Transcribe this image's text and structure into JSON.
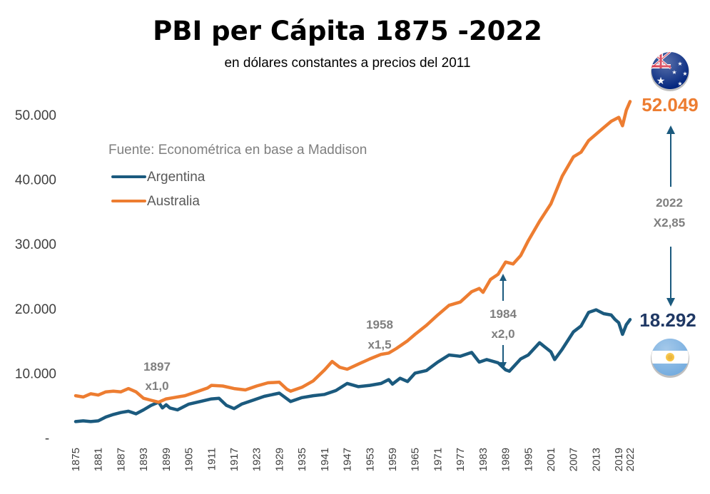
{
  "chart_data": {
    "type": "line",
    "title": "PBI per Cápita 1875 -2022",
    "subtitle": "en dólares constantes a precios del 2011",
    "source": "Fuente: Econométrica en base a Maddison",
    "xlim": [
      1875,
      2022
    ],
    "ylim": [
      0,
      55000
    ],
    "y_ticks": [
      0,
      10000,
      20000,
      30000,
      40000,
      50000
    ],
    "y_tick_labels": [
      "-",
      "10.000",
      "20.000",
      "30.000",
      "40.000",
      "50.000"
    ],
    "x_ticks": [
      1875,
      1881,
      1887,
      1893,
      1899,
      1905,
      1911,
      1917,
      1923,
      1929,
      1935,
      1941,
      1947,
      1953,
      1959,
      1965,
      1971,
      1977,
      1983,
      1989,
      1995,
      2001,
      2007,
      2013,
      2019,
      2022
    ],
    "legend_position": "top-left",
    "series": [
      {
        "name": "Argentina",
        "color": "#1B5A7E",
        "points": [
          [
            1875,
            2500
          ],
          [
            1877,
            2600
          ],
          [
            1879,
            2500
          ],
          [
            1881,
            2600
          ],
          [
            1883,
            3200
          ],
          [
            1885,
            3600
          ],
          [
            1887,
            3900
          ],
          [
            1889,
            4100
          ],
          [
            1891,
            3700
          ],
          [
            1893,
            4300
          ],
          [
            1895,
            5000
          ],
          [
            1897,
            5500
          ],
          [
            1898,
            4600
          ],
          [
            1899,
            5100
          ],
          [
            1900,
            4600
          ],
          [
            1902,
            4300
          ],
          [
            1905,
            5200
          ],
          [
            1908,
            5600
          ],
          [
            1911,
            6000
          ],
          [
            1913,
            6100
          ],
          [
            1915,
            5000
          ],
          [
            1917,
            4500
          ],
          [
            1919,
            5200
          ],
          [
            1922,
            5800
          ],
          [
            1925,
            6400
          ],
          [
            1929,
            6900
          ],
          [
            1932,
            5600
          ],
          [
            1935,
            6200
          ],
          [
            1938,
            6500
          ],
          [
            1941,
            6700
          ],
          [
            1944,
            7300
          ],
          [
            1947,
            8400
          ],
          [
            1950,
            7900
          ],
          [
            1953,
            8100
          ],
          [
            1956,
            8400
          ],
          [
            1958,
            9000
          ],
          [
            1959,
            8300
          ],
          [
            1961,
            9200
          ],
          [
            1963,
            8700
          ],
          [
            1965,
            10000
          ],
          [
            1968,
            10400
          ],
          [
            1971,
            11700
          ],
          [
            1974,
            12800
          ],
          [
            1977,
            12600
          ],
          [
            1980,
            13200
          ],
          [
            1982,
            11700
          ],
          [
            1984,
            12100
          ],
          [
            1987,
            11600
          ],
          [
            1989,
            10500
          ],
          [
            1990,
            10300
          ],
          [
            1993,
            12200
          ],
          [
            1995,
            12800
          ],
          [
            1998,
            14700
          ],
          [
            2001,
            13300
          ],
          [
            2002,
            12100
          ],
          [
            2004,
            13700
          ],
          [
            2007,
            16400
          ],
          [
            2009,
            17300
          ],
          [
            2011,
            19400
          ],
          [
            2013,
            19800
          ],
          [
            2015,
            19200
          ],
          [
            2017,
            19000
          ],
          [
            2018,
            18300
          ],
          [
            2019,
            17800
          ],
          [
            2020,
            16000
          ],
          [
            2021,
            17500
          ],
          [
            2022,
            18292
          ]
        ]
      },
      {
        "name": "Australia",
        "color": "#ED7D31",
        "points": [
          [
            1875,
            6500
          ],
          [
            1877,
            6300
          ],
          [
            1879,
            6800
          ],
          [
            1881,
            6600
          ],
          [
            1883,
            7100
          ],
          [
            1885,
            7200
          ],
          [
            1887,
            7100
          ],
          [
            1889,
            7600
          ],
          [
            1891,
            7100
          ],
          [
            1893,
            6100
          ],
          [
            1895,
            5800
          ],
          [
            1897,
            5500
          ],
          [
            1899,
            6000
          ],
          [
            1901,
            6200
          ],
          [
            1904,
            6500
          ],
          [
            1907,
            7100
          ],
          [
            1910,
            7700
          ],
          [
            1911,
            8100
          ],
          [
            1914,
            8000
          ],
          [
            1917,
            7600
          ],
          [
            1920,
            7400
          ],
          [
            1923,
            8000
          ],
          [
            1926,
            8500
          ],
          [
            1929,
            8600
          ],
          [
            1931,
            7500
          ],
          [
            1932,
            7200
          ],
          [
            1935,
            7800
          ],
          [
            1938,
            8800
          ],
          [
            1941,
            10500
          ],
          [
            1943,
            11800
          ],
          [
            1945,
            10900
          ],
          [
            1947,
            10600
          ],
          [
            1950,
            11400
          ],
          [
            1953,
            12200
          ],
          [
            1956,
            12900
          ],
          [
            1958,
            13100
          ],
          [
            1960,
            13800
          ],
          [
            1963,
            15000
          ],
          [
            1965,
            16000
          ],
          [
            1968,
            17400
          ],
          [
            1971,
            19000
          ],
          [
            1974,
            20500
          ],
          [
            1977,
            21000
          ],
          [
            1980,
            22600
          ],
          [
            1982,
            23100
          ],
          [
            1983,
            22500
          ],
          [
            1985,
            24500
          ],
          [
            1987,
            25300
          ],
          [
            1989,
            27200
          ],
          [
            1991,
            26900
          ],
          [
            1993,
            28200
          ],
          [
            1995,
            30500
          ],
          [
            1998,
            33500
          ],
          [
            2001,
            36200
          ],
          [
            2004,
            40500
          ],
          [
            2007,
            43500
          ],
          [
            2009,
            44200
          ],
          [
            2011,
            46000
          ],
          [
            2013,
            47000
          ],
          [
            2015,
            48000
          ],
          [
            2017,
            49000
          ],
          [
            2019,
            49600
          ],
          [
            2020,
            48300
          ],
          [
            2021,
            50700
          ],
          [
            2022,
            52049
          ]
        ]
      }
    ],
    "annotations": [
      {
        "year_label": "1897",
        "ratio": "x1,0"
      },
      {
        "year_label": "1958",
        "ratio": "x1,5"
      },
      {
        "year_label": "1984",
        "ratio": "x2,0"
      },
      {
        "year_label": "2022",
        "ratio": "X2,85"
      }
    ],
    "end_labels": {
      "australia": "52.049",
      "argentina": "18.292"
    }
  }
}
